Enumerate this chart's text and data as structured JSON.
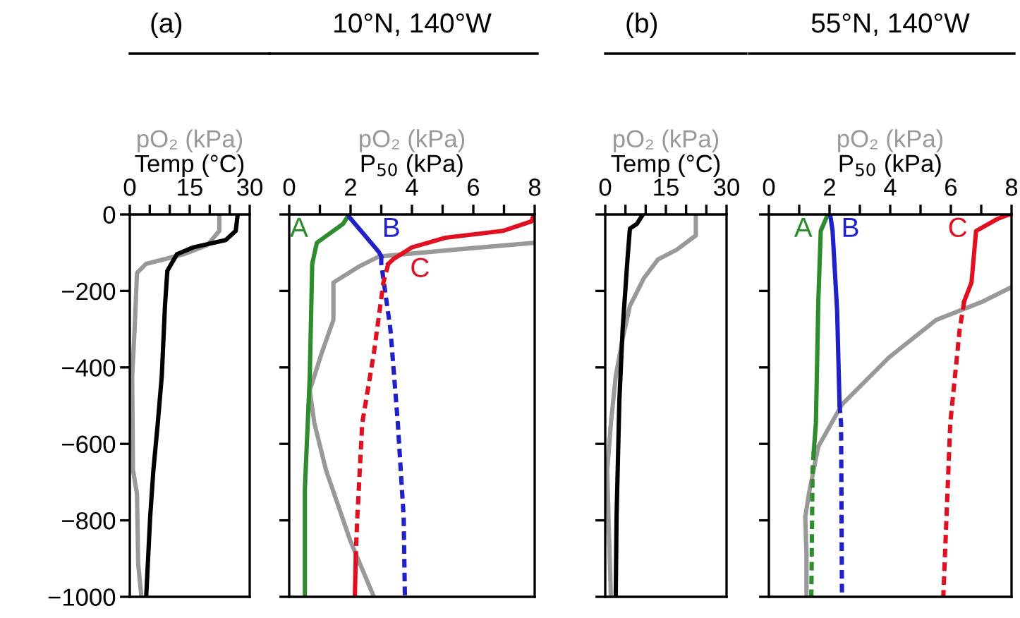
{
  "chart_data": [
    {
      "type": "line",
      "title": "(a)",
      "xlabel": "Temp (°C)",
      "xlim": [
        0,
        30
      ],
      "xticks": [
        0,
        {
          "value": 5,
          "label": null
        },
        {
          "value": 10,
          "label": null
        },
        15,
        {
          "value": 20,
          "label": null
        },
        {
          "value": 25,
          "label": null
        },
        30
      ],
      "ylim": [
        -1000,
        0
      ],
      "yticks": [
        -1000,
        -800,
        -600,
        -400,
        -200,
        0
      ],
      "grid": false,
      "legend": false,
      "series": [
        {
          "color": "#999999",
          "name": "pO₂ (kPa)",
          "x": [
            22.4,
            22.4,
            19.4,
            13.5,
            4.1,
            1.8,
            1.2,
            0.6,
            0.8,
            1.8,
            2.1,
            2.9
          ],
          "values": [
            0,
            -43,
            -80,
            -104,
            -129,
            -153,
            -301,
            -423,
            -669,
            -730,
            -914,
            -1000
          ]
        },
        {
          "color": "#000000",
          "x": [
            27,
            26.5,
            24,
            15.9,
            11.8,
            9.4,
            8.8,
            8,
            7,
            5.9,
            5.1,
            4.1
          ],
          "values": [
            0,
            -43,
            -67,
            -86,
            -104,
            -147,
            -239,
            -423,
            -546,
            -669,
            -791,
            -1000
          ]
        }
      ]
    },
    {
      "type": "line",
      "title": "10°N, 140°W",
      "xlabel": "P$_{50}$ (kPa)",
      "xlim": [
        0,
        8
      ],
      "xticks": [
        0,
        {
          "value": 1,
          "label": null
        },
        2,
        {
          "value": 3,
          "label": null
        },
        4,
        {
          "value": 5,
          "label": null
        },
        6,
        {
          "value": 7,
          "label": null
        },
        8
      ],
      "ylim": [
        -1000,
        0
      ],
      "yticks": [
        -1000,
        -800,
        -600,
        -400,
        -200,
        0
      ],
      "tick_labels": "x",
      "grid": false,
      "legend": false,
      "series": [
        {
          "color": "#999999",
          "name": "pO₂ (kPa)",
          "x": [
            8,
            5.4,
            2.92,
            2.3,
            1.44,
            1.44,
            1.06,
            0.67,
            0.82,
            1.2,
            1.99,
            2.76
          ],
          "values": [
            -74,
            -92,
            -110,
            -135,
            -178,
            -276,
            -362,
            -460,
            -546,
            -669,
            -853,
            -1000
          ]
        },
        {
          "color": "#2e8b2e",
          "name": "A",
          "line_style": "solid",
          "x": [
            1.95,
            1.75,
            0.9,
            0.75,
            0.67,
            0.51,
            0.51
          ],
          "values": [
            0,
            -25,
            -74,
            -129,
            -423,
            -718,
            -1000
          ]
        },
        {
          "color": "#2020c8",
          "name": "B",
          "line_style": "solid",
          "x": [
            1.95,
            1.95,
            2.92,
            3.0
          ],
          "values": [
            0,
            -6,
            -98,
            -110
          ]
        },
        {
          "color": "#2020c8",
          "line_style": "dashed",
          "x": [
            3.0,
            3.0,
            3.3,
            3.54,
            3.73,
            3.77
          ],
          "values": [
            -110,
            -129,
            -301,
            -546,
            -791,
            -1000
          ]
        },
        {
          "color": "#e01020",
          "name": "C",
          "line_style": "solid",
          "x": [
            7.97,
            7.9,
            6.96,
            5.09,
            4.0,
            3.39,
            3.23
          ],
          "values": [
            0,
            -18,
            -43,
            -61,
            -86,
            -117,
            -129
          ]
        },
        {
          "color": "#e01020",
          "line_style": "dashed",
          "x": [
            3.23,
            3.07,
            2.76,
            2.38,
            2.22,
            2.17
          ],
          "values": [
            -129,
            -178,
            -362,
            -546,
            -791,
            -890
          ]
        },
        {
          "color": "#e01020",
          "line_style": "solid",
          "x": [
            2.17,
            2.14
          ],
          "values": [
            -890,
            -1000
          ]
        }
      ]
    },
    {
      "type": "line",
      "title": "(b)",
      "xlabel": "Temp (°C)",
      "xlim": [
        0,
        30
      ],
      "xticks": [
        0,
        {
          "value": 5,
          "label": null
        },
        {
          "value": 10,
          "label": null
        },
        15,
        {
          "value": 20,
          "label": null
        },
        {
          "value": 25,
          "label": null
        },
        30
      ],
      "ylim": [
        -1000,
        0
      ],
      "yticks": [
        -1000,
        -800,
        -600,
        -400,
        -200,
        0
      ],
      "tick_labels": "x",
      "grid": false,
      "legend": false,
      "series": [
        {
          "color": "#999999",
          "name": "pO₂ (kPa)",
          "x": [
            22.4,
            22.4,
            17.7,
            13.1,
            9.6,
            6.1,
            4.3,
            2.6,
            1.4,
            0.5,
            0.8,
            1.4
          ],
          "values": [
            0,
            -55,
            -92,
            -117,
            -166,
            -239,
            -325,
            -423,
            -546,
            -669,
            -791,
            -1000
          ]
        },
        {
          "color": "#000000",
          "x": [
            9.3,
            7.8,
            6.1,
            5.5,
            4.3,
            3.5,
            2.8,
            2.6
          ],
          "values": [
            0,
            -25,
            -37,
            -117,
            -301,
            -485,
            -791,
            -1000
          ]
        }
      ]
    },
    {
      "type": "line",
      "title": "55°N, 140°W",
      "xlabel": "P$_{50}$ (kPa)",
      "xlim": [
        0,
        8
      ],
      "xticks": [
        0,
        {
          "value": 1,
          "label": null
        },
        2,
        {
          "value": 3,
          "label": null
        },
        4,
        {
          "value": 5,
          "label": null
        },
        6,
        {
          "value": 7,
          "label": null
        },
        8
      ],
      "ylim": [
        -1000,
        0
      ],
      "yticks": [
        -1000,
        -800,
        -600,
        -400,
        -200,
        0
      ],
      "tick_labels": "x",
      "grid": false,
      "legend": false,
      "series": [
        {
          "color": "#999999",
          "name": "pO₂ (kPa)",
          "x": [
            8,
            7.07,
            5.51,
            3.96,
            2.41,
            1.63,
            1.32,
            1.2,
            1.24,
            1.24
          ],
          "values": [
            -190,
            -227,
            -276,
            -374,
            -497,
            -607,
            -730,
            -791,
            -890,
            -1000
          ]
        },
        {
          "color": "#2e8b2e",
          "name": "A",
          "line_style": "solid",
          "x": [
            1.91,
            1.71,
            1.63,
            1.55,
            1.48
          ],
          "values": [
            -6,
            -43,
            -227,
            -546,
            -620
          ]
        },
        {
          "color": "#2e8b2e",
          "line_style": "dashed",
          "x": [
            1.48,
            1.44,
            1.4
          ],
          "values": [
            -620,
            -669,
            -1000
          ]
        },
        {
          "color": "#2020c8",
          "name": "B",
          "line_style": "solid",
          "x": [
            2.02,
            2.1,
            2.25,
            2.33
          ],
          "values": [
            0,
            -43,
            -252,
            -497
          ]
        },
        {
          "color": "#2020c8",
          "line_style": "dashed",
          "x": [
            2.33,
            2.38,
            2.41
          ],
          "values": [
            -497,
            -546,
            -1000
          ]
        },
        {
          "color": "#e01020",
          "name": "C",
          "line_style": "solid",
          "x": [
            7.92,
            7.53,
            6.83,
            6.68,
            6.44
          ],
          "values": [
            0,
            -12,
            -43,
            -178,
            -227
          ]
        },
        {
          "color": "#e01020",
          "line_style": "dashed",
          "x": [
            6.44,
            6.29,
            5.98,
            5.75
          ],
          "values": [
            -227,
            -301,
            -546,
            -1000
          ]
        }
      ]
    }
  ]
}
